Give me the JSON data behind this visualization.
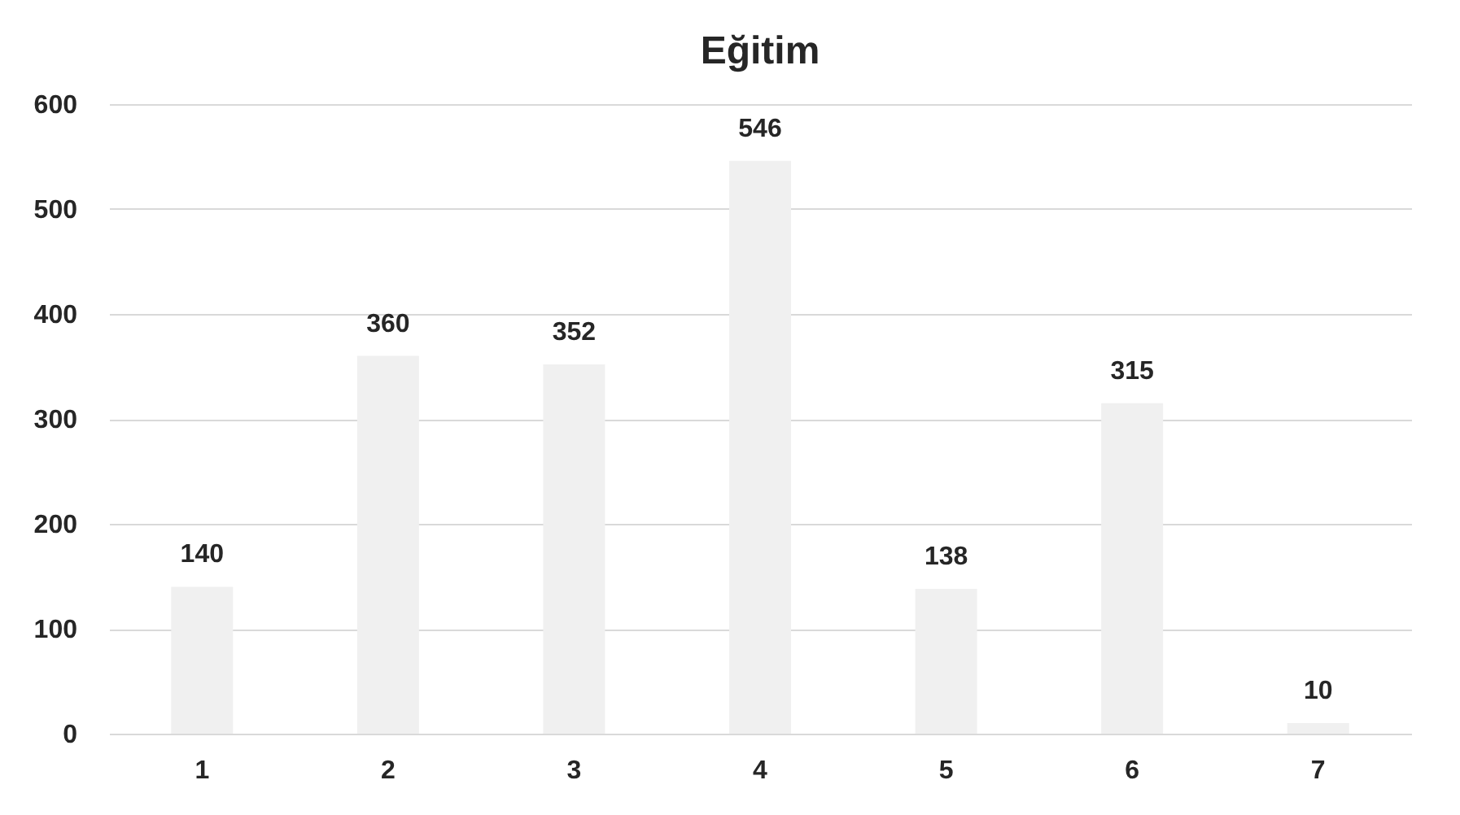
{
  "chart_data": {
    "type": "bar",
    "title": "Eğitim",
    "categories": [
      "1",
      "2",
      "3",
      "4",
      "5",
      "6",
      "7"
    ],
    "values": [
      140,
      360,
      352,
      546,
      138,
      315,
      10
    ],
    "color": "#f0f0f0",
    "ylim": [
      0,
      600
    ],
    "yticks": [
      0,
      100,
      200,
      300,
      400,
      500,
      600
    ],
    "grid": "y",
    "data_labels": true
  }
}
